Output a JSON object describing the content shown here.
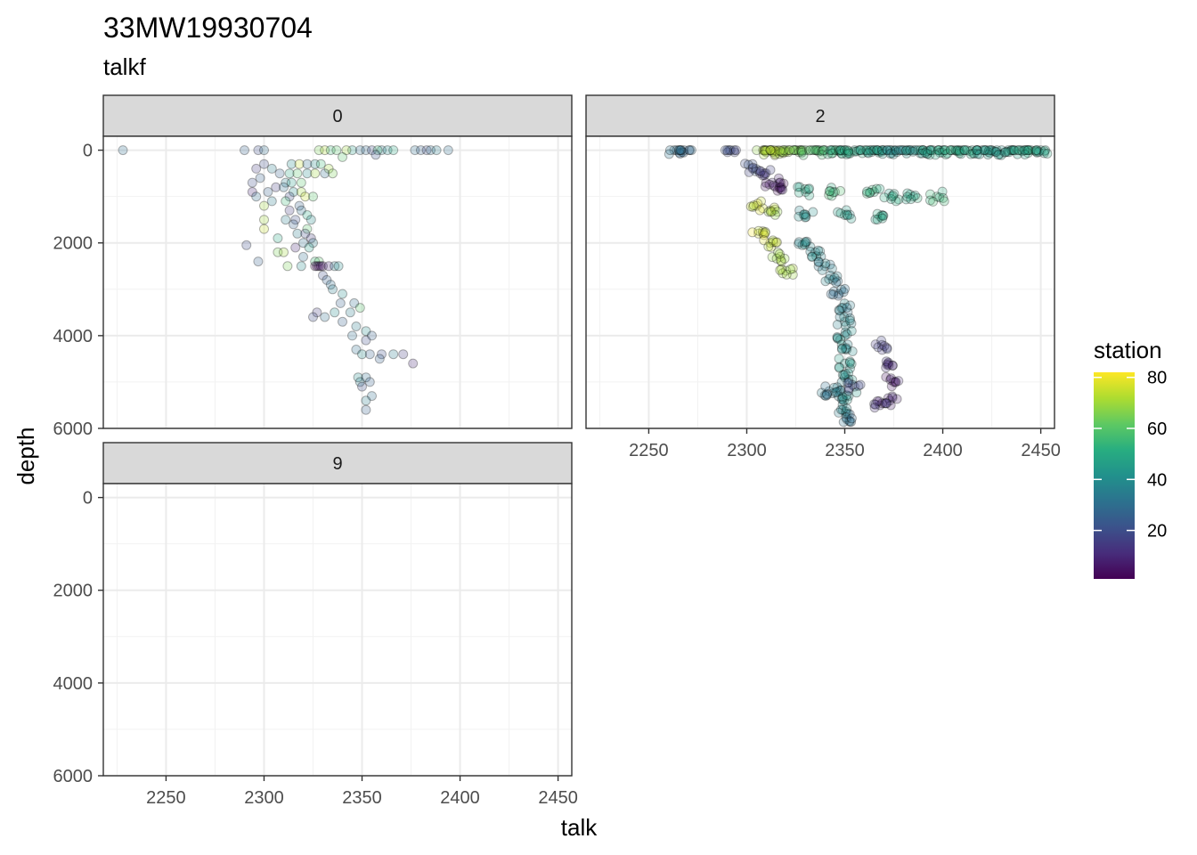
{
  "title": "33MW19930704",
  "subtitle": "talkf",
  "chart_data": {
    "type": "scatter",
    "xlabel": "talk",
    "ylabel": "depth",
    "xlim": [
      2218,
      2457
    ],
    "ylim": [
      6000,
      -300
    ],
    "y_reversed": true,
    "x_ticks": [
      2250,
      2300,
      2350,
      2400,
      2450
    ],
    "y_ticks": [
      0,
      2000,
      4000,
      6000
    ],
    "grid": true,
    "color_by": "station",
    "colorscale": "viridis",
    "color_range": [
      1,
      82
    ],
    "legend": {
      "title": "station",
      "ticks": [
        20,
        40,
        60,
        80
      ],
      "placement": "right"
    },
    "facets": [
      {
        "label": "0",
        "points": [
          [
            2228,
            0,
            30
          ],
          [
            2290,
            0,
            25
          ],
          [
            2297,
            0,
            20
          ],
          [
            2300,
            0,
            30
          ],
          [
            2328,
            0,
            65
          ],
          [
            2331,
            0,
            72
          ],
          [
            2334,
            0,
            55
          ],
          [
            2345,
            0,
            45
          ],
          [
            2349,
            0,
            30
          ],
          [
            2352,
            0,
            28
          ],
          [
            2355,
            0,
            20
          ],
          [
            2360,
            0,
            35
          ],
          [
            2363,
            0,
            40
          ],
          [
            2366,
            0,
            50
          ],
          [
            2377,
            0,
            30
          ],
          [
            2380,
            0,
            25
          ],
          [
            2383,
            0,
            20
          ],
          [
            2385,
            0,
            30
          ],
          [
            2388,
            0,
            35
          ],
          [
            2394,
            0,
            30
          ],
          [
            2337,
            0,
            60
          ],
          [
            2342,
            0,
            70
          ],
          [
            2358,
            0,
            55
          ],
          [
            2357,
            100,
            22
          ],
          [
            2340,
            150,
            60
          ],
          [
            2300,
            300,
            20
          ],
          [
            2314,
            300,
            40
          ],
          [
            2318,
            300,
            75
          ],
          [
            2322,
            300,
            30
          ],
          [
            2326,
            300,
            40
          ],
          [
            2329,
            300,
            55
          ],
          [
            2333,
            400,
            70
          ],
          [
            2296,
            400,
            15
          ],
          [
            2304,
            400,
            35
          ],
          [
            2308,
            500,
            25
          ],
          [
            2313,
            500,
            50
          ],
          [
            2317,
            500,
            60
          ],
          [
            2322,
            500,
            40
          ],
          [
            2326,
            500,
            70
          ],
          [
            2331,
            500,
            30
          ],
          [
            2335,
            500,
            65
          ],
          [
            2298,
            600,
            25
          ],
          [
            2311,
            700,
            35
          ],
          [
            2314,
            700,
            45
          ],
          [
            2319,
            700,
            60
          ],
          [
            2294,
            700,
            20
          ],
          [
            2306,
            800,
            15
          ],
          [
            2310,
            800,
            30
          ],
          [
            2315,
            900,
            40
          ],
          [
            2319,
            900,
            70
          ],
          [
            2294,
            900,
            10
          ],
          [
            2302,
            900,
            25
          ],
          [
            2296,
            1000,
            30
          ],
          [
            2313,
            1000,
            20
          ],
          [
            2321,
            1000,
            75
          ],
          [
            2311,
            1100,
            55
          ],
          [
            2304,
            1100,
            35
          ],
          [
            2318,
            1200,
            25
          ],
          [
            2325,
            1000,
            60
          ],
          [
            2300,
            1200,
            70
          ],
          [
            2313,
            1300,
            15
          ],
          [
            2319,
            1300,
            30
          ],
          [
            2322,
            1400,
            50
          ],
          [
            2300,
            1500,
            70
          ],
          [
            2311,
            1500,
            35
          ],
          [
            2316,
            1500,
            20
          ],
          [
            2324,
            1500,
            40
          ],
          [
            2315,
            1600,
            25
          ],
          [
            2322,
            1700,
            60
          ],
          [
            2300,
            1700,
            75
          ],
          [
            2317,
            1800,
            35
          ],
          [
            2321,
            1800,
            20
          ],
          [
            2307,
            1900,
            50
          ],
          [
            2324,
            1900,
            15
          ],
          [
            2320,
            2000,
            30
          ],
          [
            2325,
            2000,
            35
          ],
          [
            2291,
            2050,
            20
          ],
          [
            2316,
            2100,
            10
          ],
          [
            2323,
            2100,
            45
          ],
          [
            2307,
            2200,
            65
          ],
          [
            2310,
            2200,
            70
          ],
          [
            2320,
            2300,
            30
          ],
          [
            2326,
            2400,
            55
          ],
          [
            2328,
            2400,
            60
          ],
          [
            2297,
            2400,
            25
          ],
          [
            2312,
            2500,
            65
          ],
          [
            2319,
            2500,
            40
          ],
          [
            2326,
            2500,
            2
          ],
          [
            2327,
            2500,
            3
          ],
          [
            2328,
            2500,
            4
          ],
          [
            2329,
            2500,
            5
          ],
          [
            2330,
            2500,
            7
          ],
          [
            2333,
            2500,
            10
          ],
          [
            2336,
            2500,
            35
          ],
          [
            2338,
            2500,
            40
          ],
          [
            2330,
            2700,
            20
          ],
          [
            2332,
            2800,
            25
          ],
          [
            2334,
            2900,
            30
          ],
          [
            2335,
            3000,
            35
          ],
          [
            2340,
            3100,
            40
          ],
          [
            2339,
            3300,
            25
          ],
          [
            2346,
            3300,
            30
          ],
          [
            2349,
            3400,
            60
          ],
          [
            2327,
            3500,
            15
          ],
          [
            2325,
            3600,
            20
          ],
          [
            2331,
            3600,
            30
          ],
          [
            2336,
            3500,
            40
          ],
          [
            2344,
            3500,
            35
          ],
          [
            2340,
            3700,
            25
          ],
          [
            2347,
            3800,
            35
          ],
          [
            2345,
            4000,
            30
          ],
          [
            2352,
            3900,
            40
          ],
          [
            2355,
            4000,
            25
          ],
          [
            2352,
            4100,
            20
          ],
          [
            2347,
            4300,
            30
          ],
          [
            2350,
            4400,
            40
          ],
          [
            2354,
            4400,
            25
          ],
          [
            2360,
            4400,
            20
          ],
          [
            2366,
            4400,
            35
          ],
          [
            2371,
            4400,
            15
          ],
          [
            2359,
            4500,
            25
          ],
          [
            2376,
            4600,
            10
          ],
          [
            2348,
            4900,
            40
          ],
          [
            2352,
            4900,
            30
          ],
          [
            2349,
            5000,
            35
          ],
          [
            2354,
            5000,
            25
          ],
          [
            2350,
            5100,
            20
          ],
          [
            2355,
            5300,
            30
          ],
          [
            2352,
            5400,
            35
          ],
          [
            2352,
            5600,
            25
          ]
        ]
      },
      {
        "label": "2",
        "generated": true,
        "points": [
          [
            2263,
            0,
            30
          ],
          [
            2268,
            0,
            28
          ],
          [
            2291,
            0,
            20
          ],
          [
            2309,
            0,
            70
          ],
          [
            2312,
            0,
            75
          ],
          [
            2316,
            0,
            72
          ],
          [
            2320,
            0,
            68
          ],
          [
            2325,
            0,
            65
          ],
          [
            2330,
            0,
            60
          ],
          [
            2335,
            0,
            58
          ],
          [
            2340,
            0,
            55
          ],
          [
            2345,
            0,
            52
          ],
          [
            2350,
            0,
            50
          ],
          [
            2355,
            0,
            50
          ],
          [
            2360,
            0,
            48
          ],
          [
            2365,
            0,
            45
          ],
          [
            2370,
            0,
            44
          ],
          [
            2375,
            0,
            42
          ],
          [
            2380,
            0,
            40
          ],
          [
            2385,
            0,
            42
          ],
          [
            2390,
            0,
            45
          ],
          [
            2395,
            0,
            48
          ],
          [
            2400,
            0,
            50
          ],
          [
            2405,
            0,
            52
          ],
          [
            2410,
            0,
            50
          ],
          [
            2415,
            0,
            48
          ],
          [
            2420,
            0,
            45
          ],
          [
            2425,
            0,
            44
          ],
          [
            2430,
            0,
            42
          ],
          [
            2435,
            0,
            45
          ],
          [
            2440,
            0,
            50
          ],
          [
            2445,
            0,
            48
          ],
          [
            2450,
            0,
            46
          ],
          [
            2303,
            400,
            20
          ],
          [
            2309,
            500,
            15
          ],
          [
            2313,
            700,
            10
          ],
          [
            2317,
            800,
            5
          ],
          [
            2330,
            900,
            50
          ],
          [
            2345,
            900,
            55
          ],
          [
            2365,
            900,
            52
          ],
          [
            2374,
            1000,
            48
          ],
          [
            2385,
            1000,
            50
          ],
          [
            2397,
            1000,
            55
          ],
          [
            2305,
            1200,
            75
          ],
          [
            2312,
            1300,
            72
          ],
          [
            2330,
            1400,
            40
          ],
          [
            2350,
            1400,
            45
          ],
          [
            2369,
            1400,
            48
          ],
          [
            2306,
            1800,
            78
          ],
          [
            2312,
            2000,
            76
          ],
          [
            2317,
            2300,
            72
          ],
          [
            2320,
            2600,
            70
          ],
          [
            2330,
            2000,
            38
          ],
          [
            2335,
            2200,
            40
          ],
          [
            2340,
            2500,
            36
          ],
          [
            2344,
            2800,
            34
          ],
          [
            2347,
            3100,
            30
          ],
          [
            2349,
            3400,
            35
          ],
          [
            2350,
            3700,
            38
          ],
          [
            2350,
            4000,
            42
          ],
          [
            2351,
            4300,
            40
          ],
          [
            2350,
            4600,
            44
          ],
          [
            2350,
            4900,
            40
          ],
          [
            2347,
            5200,
            35
          ],
          [
            2352,
            5300,
            42
          ],
          [
            2349,
            5600,
            38
          ],
          [
            2351,
            5800,
            30
          ],
          [
            2342,
            5200,
            32
          ],
          [
            2369,
            4200,
            15
          ],
          [
            2372,
            4600,
            10
          ],
          [
            2375,
            5000,
            6
          ],
          [
            2373,
            5400,
            8
          ],
          [
            2368,
            5500,
            12
          ],
          [
            2355,
            5100,
            20
          ]
        ]
      },
      {
        "label": "9",
        "points": []
      }
    ]
  }
}
